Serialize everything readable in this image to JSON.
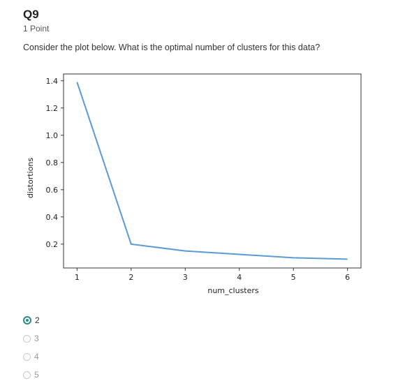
{
  "question": {
    "title": "Q9",
    "points": "1 Point",
    "text": "Consider the plot below. What is the optimal number of clusters for this data?"
  },
  "options": [
    {
      "label": "2",
      "selected": true
    },
    {
      "label": "3",
      "selected": false
    },
    {
      "label": "4",
      "selected": false
    },
    {
      "label": "5",
      "selected": false
    }
  ],
  "chart_data": {
    "type": "line",
    "x": [
      1,
      2,
      3,
      4,
      5,
      6
    ],
    "series": [
      {
        "values": [
          1.39,
          0.2,
          0.15,
          0.125,
          0.1,
          0.09
        ],
        "color": "#5b9bd5"
      }
    ],
    "xlabel": "num_clusters",
    "ylabel": "distortions",
    "xticks": [
      "1",
      "2",
      "3",
      "4",
      "5",
      "6"
    ],
    "yticks": [
      "0.2",
      "0.4",
      "0.6",
      "0.8",
      "1.0",
      "1.2",
      "1.4"
    ],
    "xlim": [
      0.75,
      6.25
    ],
    "ylim": [
      0.025,
      1.45
    ],
    "grid": false
  },
  "colors": {
    "accent": "#2a8a8c",
    "line": "#5b9bd5"
  }
}
